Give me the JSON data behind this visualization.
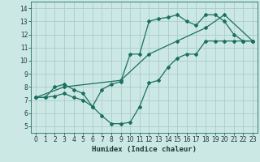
{
  "xlabel": "Humidex (Indice chaleur)",
  "bg_color": "#cce8e5",
  "grid_color": "#aaccca",
  "line_color": "#1a7060",
  "xlim": [
    -0.5,
    23.5
  ],
  "ylim": [
    4.5,
    14.5
  ],
  "xticks": [
    0,
    1,
    2,
    3,
    4,
    5,
    6,
    7,
    8,
    9,
    10,
    11,
    12,
    13,
    14,
    15,
    16,
    17,
    18,
    19,
    20,
    21,
    22,
    23
  ],
  "yticks": [
    5,
    6,
    7,
    8,
    9,
    10,
    11,
    12,
    13,
    14
  ],
  "line1_x": [
    0,
    1,
    2,
    3,
    4,
    5,
    6,
    7,
    8,
    9,
    10,
    11,
    12,
    13,
    14,
    15,
    16,
    17,
    18,
    19,
    20,
    21,
    22,
    23
  ],
  "line1_y": [
    7.2,
    7.2,
    8.0,
    8.2,
    7.8,
    7.5,
    6.5,
    7.8,
    8.2,
    8.4,
    10.5,
    10.5,
    13.0,
    13.2,
    13.3,
    13.5,
    13.0,
    12.7,
    13.5,
    13.5,
    13.0,
    12.0,
    11.5,
    11.5
  ],
  "line2_x": [
    0,
    1,
    2,
    3,
    4,
    5,
    6,
    7,
    8,
    9,
    10,
    11,
    12,
    13,
    14,
    15,
    16,
    17,
    18,
    19,
    20,
    21,
    22,
    23
  ],
  "line2_y": [
    7.2,
    7.2,
    7.3,
    7.5,
    7.2,
    7.0,
    6.5,
    5.8,
    5.2,
    5.2,
    5.3,
    6.5,
    8.3,
    8.5,
    9.5,
    10.2,
    10.5,
    10.5,
    11.5,
    11.5,
    11.5,
    11.5,
    11.5,
    11.5
  ],
  "line3_x": [
    0,
    3,
    9,
    12,
    15,
    18,
    20,
    23
  ],
  "line3_y": [
    7.2,
    8.0,
    8.5,
    10.5,
    11.5,
    12.5,
    13.5,
    11.5
  ]
}
